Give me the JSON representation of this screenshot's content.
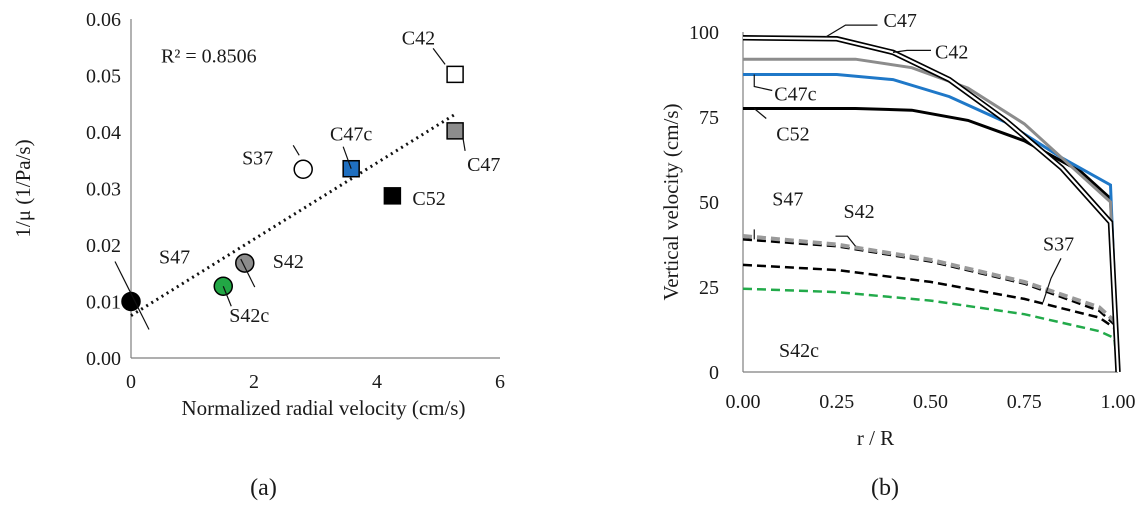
{
  "chart_data": [
    {
      "type": "scatter",
      "panel_label": "(a)",
      "xlabel": "Normalized radial velocity (cm/s)",
      "ylabel": "1/μ (1/Pa/s)",
      "xlim": [
        0,
        6
      ],
      "ylim": [
        0,
        0.06
      ],
      "x_ticks": [
        "0",
        "2",
        "4",
        "6"
      ],
      "y_ticks": [
        "0.00",
        "0.01",
        "0.02",
        "0.03",
        "0.04",
        "0.05",
        "0.06"
      ],
      "grid": false,
      "annotation": "R² = 0.8506",
      "trendline": {
        "x": [
          0,
          5.25
        ],
        "y": [
          0.0075,
          0.043
        ],
        "style": "dotted"
      },
      "points": [
        {
          "label": "S47",
          "x": 0,
          "y": 0.01,
          "shape": "circle",
          "fill": "#000000",
          "stroke": "#000000"
        },
        {
          "label": "S42c",
          "x": 1.5,
          "y": 0.0127,
          "shape": "circle",
          "fill": "#22a745",
          "stroke": "#000000"
        },
        {
          "label": "S42",
          "x": 1.85,
          "y": 0.0168,
          "shape": "circle",
          "fill": "#8c8c8c",
          "stroke": "#000000"
        },
        {
          "label": "S37",
          "x": 2.8,
          "y": 0.0334,
          "shape": "circle",
          "fill": "#ffffff",
          "stroke": "#000000"
        },
        {
          "label": "C47c",
          "x": 3.58,
          "y": 0.0335,
          "shape": "square",
          "fill": "#1f6fc0",
          "stroke": "#000000"
        },
        {
          "label": "C52",
          "x": 4.25,
          "y": 0.0287,
          "shape": "square",
          "fill": "#000000",
          "stroke": "#000000"
        },
        {
          "label": "C47",
          "x": 5.27,
          "y": 0.0402,
          "shape": "square",
          "fill": "#8c8c8c",
          "stroke": "#000000"
        },
        {
          "label": "C42",
          "x": 5.27,
          "y": 0.0502,
          "shape": "square",
          "fill": "#ffffff",
          "stroke": "#000000"
        }
      ]
    },
    {
      "type": "line",
      "panel_label": "(b)",
      "xlabel": "r / R",
      "ylabel": "Vertical velocity (cm/s)",
      "xlim": [
        0,
        1
      ],
      "ylim": [
        0,
        100
      ],
      "x_ticks": [
        "0.00",
        "0.25",
        "0.50",
        "0.75",
        "1.00"
      ],
      "y_ticks": [
        "0",
        "25",
        "50",
        "75",
        "100"
      ],
      "grid": false,
      "series": [
        {
          "name": "C47",
          "color": "#000000",
          "style": "double",
          "x": [
            0,
            0.25,
            0.4,
            0.55,
            0.7,
            0.85,
            0.98,
            1.0
          ],
          "y": [
            98.3,
            98.0,
            94.0,
            86.0,
            74.0,
            60.0,
            44.0,
            0
          ]
        },
        {
          "name": "C42",
          "color": "#8c8c8c",
          "style": "solid",
          "x": [
            0,
            0.3,
            0.45,
            0.6,
            0.75,
            0.9,
            0.98,
            1.0
          ],
          "y": [
            92.0,
            92.0,
            89.5,
            83.5,
            73.0,
            58.0,
            50.0,
            0
          ]
        },
        {
          "name": "C47c",
          "color": "#1f78c8",
          "style": "solid",
          "x": [
            0,
            0.25,
            0.4,
            0.55,
            0.7,
            0.85,
            0.98,
            1.0
          ],
          "y": [
            87.5,
            87.5,
            86.0,
            81.0,
            73.5,
            63.0,
            55.0,
            0
          ]
        },
        {
          "name": "C52",
          "color": "#000000",
          "style": "solid",
          "x": [
            0,
            0.3,
            0.45,
            0.6,
            0.75,
            0.9,
            0.98,
            1.0
          ],
          "y": [
            77.5,
            77.5,
            77.0,
            74.0,
            68.0,
            59.0,
            51.0,
            0
          ]
        },
        {
          "name": "S42",
          "color": "#9a9a9a",
          "style": "dashed",
          "x": [
            0,
            0.25,
            0.5,
            0.75,
            0.95,
            0.99,
            1.0
          ],
          "y": [
            40.0,
            37.5,
            33.0,
            26.5,
            19.0,
            15.0,
            0
          ]
        },
        {
          "name": "S47",
          "color": "#000000",
          "style": "dashed",
          "x": [
            0,
            0.25,
            0.5,
            0.75,
            0.95,
            0.99,
            1.0
          ],
          "y": [
            39.0,
            37.0,
            32.5,
            26.0,
            18.0,
            14.0,
            0
          ]
        },
        {
          "name": "S37",
          "color": "#000000",
          "style": "dashed",
          "x": [
            0,
            0.25,
            0.5,
            0.75,
            0.95,
            0.99,
            1.0
          ],
          "y": [
            31.5,
            30.0,
            26.5,
            21.5,
            16.0,
            13.0,
            0
          ]
        },
        {
          "name": "S42c",
          "color": "#22aa4a",
          "style": "dashed",
          "x": [
            0,
            0.25,
            0.5,
            0.75,
            0.95,
            0.99,
            1.0
          ],
          "y": [
            24.5,
            23.5,
            21.0,
            17.0,
            12.0,
            10.0,
            0
          ]
        }
      ]
    }
  ]
}
